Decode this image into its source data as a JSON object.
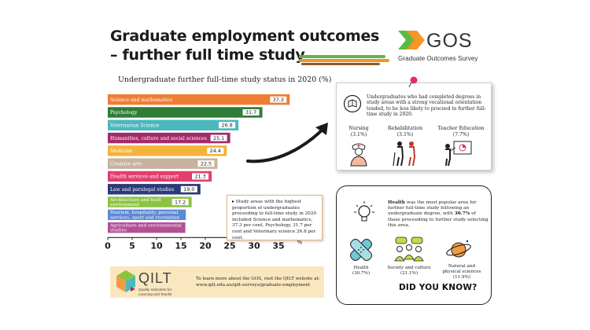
{
  "title_line1": "Graduate employment outcomes",
  "title_line2": "– further full time study",
  "logo": {
    "name": "GOS",
    "subtitle": "Graduate Outcomes Survey",
    "colors": [
      "#5cb947",
      "#f6921e"
    ]
  },
  "chart_data": {
    "type": "bar",
    "orientation": "horizontal",
    "title": "Undergraduate further full-time study status in 2020 (%)",
    "categories": [
      "Science and mathematics",
      "Psychology",
      "Veternarian Science",
      "Humanities, culture and social sciences",
      "Medicine",
      "Creative arts",
      "Health services and support",
      "Law and paralegal studies",
      "Architecture and built environment",
      "Tourism, hospitality, personal services, sport and recreation",
      "Agriculture and environmental studies"
    ],
    "values": [
      37.3,
      31.7,
      26.8,
      25.1,
      24.4,
      22.5,
      21.3,
      19.0,
      17.2,
      16.0,
      15.9
    ],
    "value_labels": [
      "37.3",
      "31.7",
      "26.8",
      "25.1",
      "24.4",
      "22.5",
      "21.3",
      "19.0",
      "17.2",
      "",
      ""
    ],
    "colors": [
      "#ef7d33",
      "#2e7d37",
      "#4bb8bf",
      "#a52a6a",
      "#f4b33b",
      "#c7b39f",
      "#e23e6f",
      "#2a3a7a",
      "#8cc342",
      "#5d8ad3",
      "#b34f97"
    ],
    "xlim": [
      0,
      40
    ],
    "xticks": [
      "0",
      "5",
      "10",
      "15",
      "20",
      "25",
      "30",
      "35"
    ],
    "xunit": "%",
    "grid": false
  },
  "callout": "Study areas with the highest proportion of undergraduates proceeding to full-time study in 2020 included Science and mathematics, 37.3 per cent, Psychology, 31.7 per cent and Veterinary science 26.8 per cent.",
  "note": {
    "text": "Undergraduates who had completed degrees in study areas with a strong vocational orientation tended, to be less likely to proceed to further full-time study in 2020.",
    "items": [
      {
        "label": "Nursing",
        "value": "(3.1%)"
      },
      {
        "label": "Rehabilitation",
        "value": "(3.1%)"
      },
      {
        "label": "Teacher Education",
        "value": "(7.7%)"
      }
    ]
  },
  "dyk": {
    "highlight1": "Health",
    "text1": " was the most popular area for further full-time study following an undergraduate degree, with ",
    "highlight2": "30.7%",
    "text2": " of those proceeding to further study selecting this area.",
    "areas": [
      {
        "label": "Health",
        "value": "(30.7%)"
      },
      {
        "label": "Society and culture",
        "value": "(21.1%)"
      },
      {
        "label1": "Natural and",
        "label2": "physical sciences",
        "value": "(11.9%)"
      }
    ],
    "label": "DID YOU KNOW?"
  },
  "qilt": {
    "name": "QILT",
    "sub1": "Quality Indicators for",
    "sub2": "Learning and Teachir",
    "line1": "To learn more about the GOS, visit the QILT website at:",
    "line2": "www.qilt.edu.au/qilt-surveys/graduate-employment"
  }
}
